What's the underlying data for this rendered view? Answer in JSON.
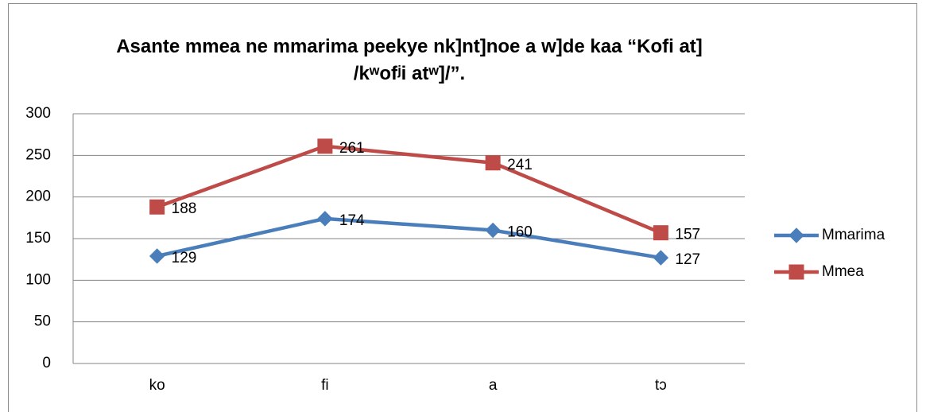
{
  "chart_data": {
    "type": "line",
    "title": "Asante mmea ne mmarima peekye nk]nt]noe a w]de kaa “Kofi at] /kʷofʲi atʷ]/”.",
    "categories": [
      "ko",
      "fi",
      "a",
      "tɔ"
    ],
    "series": [
      {
        "name": "Mmarima",
        "color": "#4a7ebb",
        "marker": "diamond",
        "values": [
          129,
          174,
          160,
          127
        ]
      },
      {
        "name": "Mmea",
        "color": "#be4b48",
        "marker": "square",
        "values": [
          188,
          261,
          241,
          157
        ]
      }
    ],
    "ylim": [
      0,
      300
    ],
    "yticks": [
      0,
      50,
      100,
      150,
      200,
      250,
      300
    ],
    "grid": true,
    "legend": "right"
  }
}
